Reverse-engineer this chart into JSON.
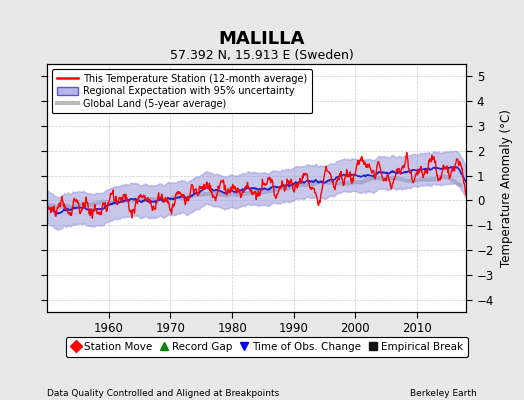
{
  "title": "MALILLA",
  "subtitle": "57.392 N, 15.913 E (Sweden)",
  "xlabel_bottom": "Data Quality Controlled and Aligned at Breakpoints",
  "xlabel_right": "Berkeley Earth",
  "ylabel": "Temperature Anomaly (°C)",
  "xlim": [
    1950,
    2018
  ],
  "ylim": [
    -4.5,
    5.5
  ],
  "yticks": [
    -4,
    -3,
    -2,
    -1,
    0,
    1,
    2,
    3,
    4,
    5
  ],
  "xticks": [
    1960,
    1970,
    1980,
    1990,
    2000,
    2010
  ],
  "background_color": "#e8e8e8",
  "plot_bg_color": "#ffffff",
  "grid_color": "#c8c8c8",
  "red_line_color": "#ff0000",
  "blue_line_color": "#2222cc",
  "blue_fill_color": "#9999dd",
  "gray_line_color": "#bbbbbb",
  "legend1_labels": [
    "This Temperature Station (12-month average)",
    "Regional Expectation with 95% uncertainty",
    "Global Land (5-year average)"
  ],
  "legend2_labels": [
    "Station Move",
    "Record Gap",
    "Time of Obs. Change",
    "Empirical Break"
  ],
  "legend2_colors": [
    "#ff0000",
    "#008800",
    "#0000ff",
    "#111111"
  ],
  "legend2_markers": [
    "D",
    "^",
    "v",
    "s"
  ]
}
